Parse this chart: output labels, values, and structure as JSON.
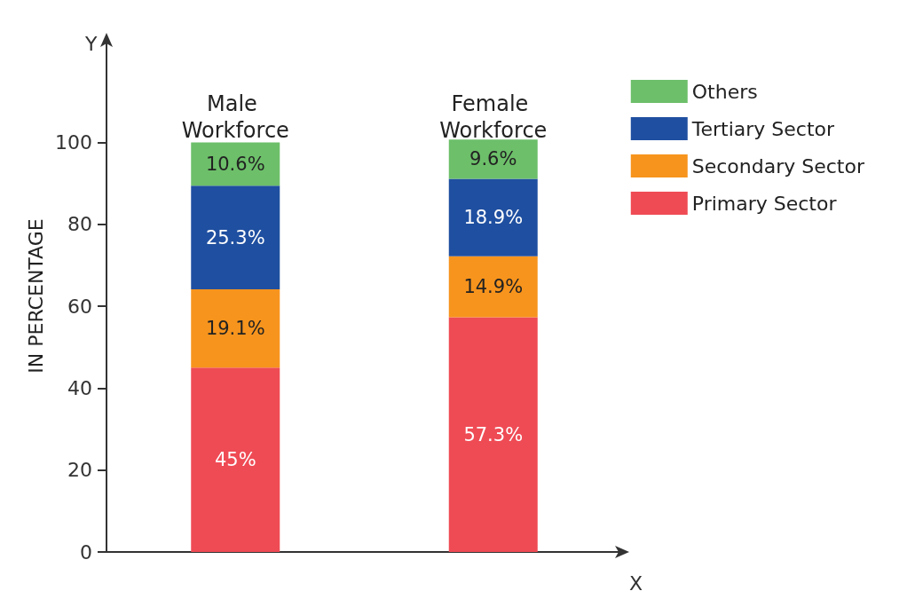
{
  "chart_data": {
    "type": "bar",
    "stacked": true,
    "xlabel": "X",
    "ylabel": "IN PERCENTAGE",
    "annotations": [
      "Y"
    ],
    "categories": [
      "Male Workforce",
      "Female Workforce"
    ],
    "series": [
      {
        "name": "Primary Sector",
        "color": "#ef4b55",
        "values": [
          45,
          57.3
        ],
        "value_labels": [
          "45%",
          "57.3%"
        ]
      },
      {
        "name": "Secondary Sector",
        "color": "#f7941d",
        "values": [
          19.1,
          14.9
        ],
        "value_labels": [
          "19.1%",
          "14.9%"
        ]
      },
      {
        "name": "Tertiary Sector",
        "color": "#1f4fa0",
        "values": [
          25.3,
          18.9
        ],
        "value_labels": [
          "25.3%",
          "18.9%"
        ]
      },
      {
        "name": "Others",
        "color": "#6dbf6a",
        "values": [
          10.6,
          9.6
        ],
        "value_labels": [
          "10.6%",
          "9.6%"
        ]
      }
    ],
    "ylim": [
      0,
      125
    ],
    "yticks": [
      0,
      20,
      40,
      60,
      80,
      100
    ],
    "grid": false,
    "legend": "top right"
  }
}
